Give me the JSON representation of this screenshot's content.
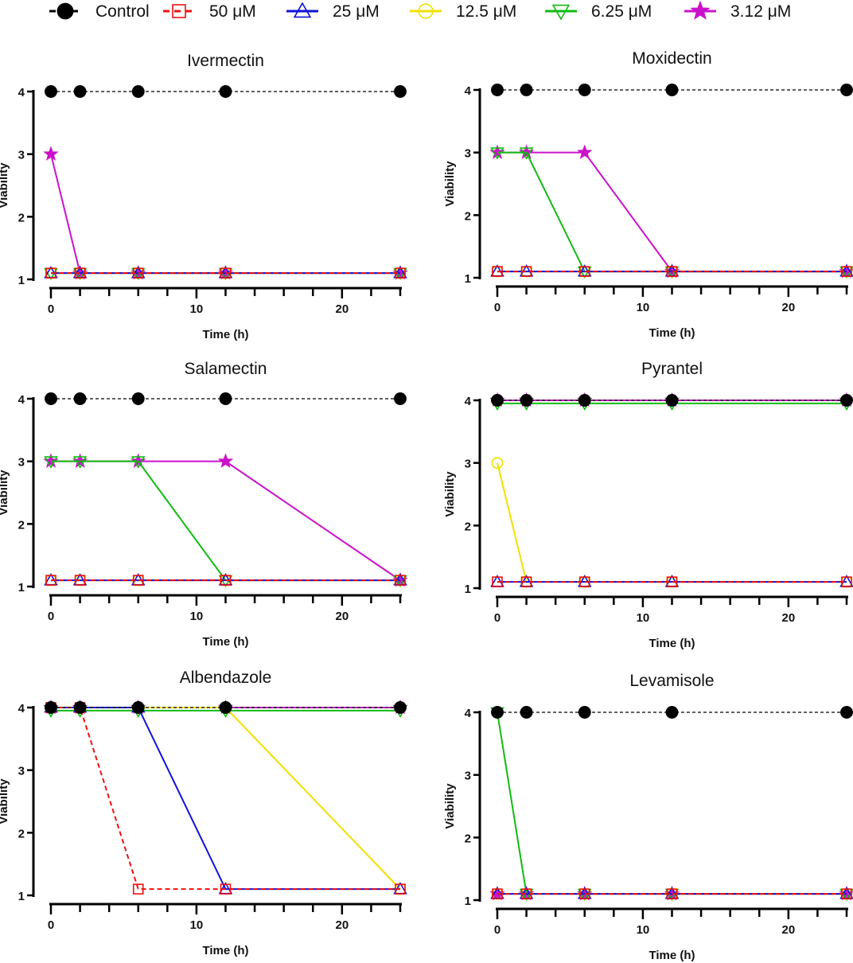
{
  "legend": [
    {
      "name": "Control",
      "color": "#000000",
      "marker": "filled-circle",
      "dashed": true
    },
    {
      "name": "50 μM",
      "color": "#ee1111",
      "marker": "open-square",
      "dashed": true
    },
    {
      "name": "25 μM",
      "color": "#1111dd",
      "marker": "open-triangle-up",
      "dashed": false
    },
    {
      "name": "12.5 μM",
      "color": "#f0e000",
      "marker": "open-circle",
      "dashed": false
    },
    {
      "name": "6.25 μM",
      "color": "#11bb11",
      "marker": "open-triangle-down",
      "dashed": false
    },
    {
      "name": "3.12 μM",
      "color": "#cc11cc",
      "marker": "star",
      "dashed": false
    }
  ],
  "chart_data": [
    {
      "type": "line",
      "title": "Ivermectin",
      "xlabel": "Time (h)",
      "ylabel": "Viability",
      "x": [
        0,
        2,
        6,
        12,
        24
      ],
      "xlim": [
        0,
        24
      ],
      "ylim": [
        1,
        4
      ],
      "xticks": [
        0,
        10,
        20
      ],
      "yticks": [
        1,
        2,
        3,
        4
      ],
      "series": [
        {
          "name": "Control",
          "values": [
            4,
            4,
            4,
            4,
            4
          ]
        },
        {
          "name": "50 μM",
          "values": [
            1.1,
            1.1,
            1.1,
            1.1,
            1.1
          ]
        },
        {
          "name": "25 μM",
          "values": [
            1.1,
            1.1,
            1.1,
            1.1,
            1.1
          ]
        },
        {
          "name": "12.5 μM",
          "values": [
            1.1,
            1.1,
            1.1,
            1.1,
            1.1
          ]
        },
        {
          "name": "6.25 μM",
          "values": [
            1.1,
            1.1,
            1.1,
            1.1,
            1.1
          ]
        },
        {
          "name": "3.12 μM",
          "values": [
            3,
            1.1,
            1.1,
            1.1,
            1.1
          ]
        }
      ]
    },
    {
      "type": "line",
      "title": "Moxidectin",
      "xlabel": "Time (h)",
      "ylabel": "Viability",
      "x": [
        0,
        2,
        6,
        12,
        24
      ],
      "xlim": [
        0,
        24
      ],
      "ylim": [
        1,
        4
      ],
      "xticks": [
        0,
        10,
        20
      ],
      "yticks": [
        1,
        2,
        3,
        4
      ],
      "series": [
        {
          "name": "Control",
          "values": [
            4,
            4,
            4,
            4,
            4
          ]
        },
        {
          "name": "50 μM",
          "values": [
            1.1,
            1.1,
            1.1,
            1.1,
            1.1
          ]
        },
        {
          "name": "25 μM",
          "values": [
            1.1,
            1.1,
            1.1,
            1.1,
            1.1
          ]
        },
        {
          "name": "12.5 μM",
          "values": [
            1.1,
            1.1,
            1.1,
            1.1,
            1.1
          ]
        },
        {
          "name": "6.25 μM",
          "values": [
            3,
            3,
            1.1,
            1.1,
            1.1
          ]
        },
        {
          "name": "3.12 μM",
          "values": [
            3,
            3,
            3,
            1.1,
            1.1
          ]
        }
      ]
    },
    {
      "type": "line",
      "title": "Salamectin",
      "xlabel": "Time (h)",
      "ylabel": "Viability",
      "x": [
        0,
        2,
        6,
        12,
        24
      ],
      "xlim": [
        0,
        24
      ],
      "ylim": [
        1,
        4
      ],
      "xticks": [
        0,
        10,
        20
      ],
      "yticks": [
        1,
        2,
        3,
        4
      ],
      "series": [
        {
          "name": "Control",
          "values": [
            4,
            4,
            4,
            4,
            4
          ]
        },
        {
          "name": "50 μM",
          "values": [
            1.1,
            1.1,
            1.1,
            1.1,
            1.1
          ]
        },
        {
          "name": "25 μM",
          "values": [
            1.1,
            1.1,
            1.1,
            1.1,
            1.1
          ]
        },
        {
          "name": "12.5 μM",
          "values": [
            1.1,
            1.1,
            1.1,
            1.1,
            1.1
          ]
        },
        {
          "name": "6.25 μM",
          "values": [
            3,
            3,
            3,
            1.1,
            1.1
          ]
        },
        {
          "name": "3.12 μM",
          "values": [
            3,
            3,
            3,
            3,
            1.1
          ]
        }
      ]
    },
    {
      "type": "line",
      "title": "Pyrantel",
      "xlabel": "Time (h)",
      "ylabel": "Viability",
      "x": [
        0,
        2,
        6,
        12,
        24
      ],
      "xlim": [
        0,
        24
      ],
      "ylim": [
        1,
        4
      ],
      "xticks": [
        0,
        10,
        20
      ],
      "yticks": [
        1,
        2,
        3,
        4
      ],
      "series": [
        {
          "name": "Control",
          "values": [
            4,
            4,
            4,
            4,
            4
          ]
        },
        {
          "name": "50 μM",
          "values": [
            1.1,
            1.1,
            1.1,
            1.1,
            1.1
          ]
        },
        {
          "name": "25 μM",
          "values": [
            1.1,
            1.1,
            1.1,
            1.1,
            1.1
          ]
        },
        {
          "name": "12.5 μM",
          "values": [
            3,
            1.1,
            1.1,
            1.1,
            1.1
          ]
        },
        {
          "name": "6.25 μM",
          "values": [
            3.95,
            3.95,
            3.95,
            3.95,
            3.95
          ]
        },
        {
          "name": "3.12 μM",
          "values": [
            4,
            4,
            4,
            4,
            4
          ]
        }
      ]
    },
    {
      "type": "line",
      "title": "Albendazole",
      "xlabel": "Time (h)",
      "ylabel": "Viability",
      "x": [
        0,
        2,
        6,
        12,
        24
      ],
      "xlim": [
        0,
        24
      ],
      "ylim": [
        1,
        4
      ],
      "xticks": [
        0,
        10,
        20
      ],
      "yticks": [
        1,
        2,
        3,
        4
      ],
      "series": [
        {
          "name": "Control",
          "values": [
            4,
            4,
            4,
            4,
            4
          ]
        },
        {
          "name": "50 μM",
          "values": [
            4,
            4,
            1.1,
            1.1,
            1.1
          ]
        },
        {
          "name": "25 μM",
          "values": [
            4,
            4,
            4,
            1.1,
            1.1
          ]
        },
        {
          "name": "12.5 μM",
          "values": [
            4,
            4,
            4,
            4,
            1.1
          ]
        },
        {
          "name": "6.25 μM",
          "values": [
            3.95,
            3.95,
            3.95,
            3.95,
            3.95
          ]
        },
        {
          "name": "3.12 μM",
          "values": [
            4,
            4,
            4,
            4,
            4
          ]
        }
      ]
    },
    {
      "type": "line",
      "title": "Levamisole",
      "xlabel": "Time (h)",
      "ylabel": "Viability",
      "x": [
        0,
        2,
        6,
        12,
        24
      ],
      "xlim": [
        0,
        24
      ],
      "ylim": [
        1,
        4
      ],
      "xticks": [
        0,
        10,
        20
      ],
      "yticks": [
        1,
        2,
        3,
        4
      ],
      "series": [
        {
          "name": "Control",
          "values": [
            4,
            4,
            4,
            4,
            4
          ]
        },
        {
          "name": "50 μM",
          "values": [
            1.1,
            1.1,
            1.1,
            1.1,
            1.1
          ]
        },
        {
          "name": "25 μM",
          "values": [
            1.1,
            1.1,
            1.1,
            1.1,
            1.1
          ]
        },
        {
          "name": "12.5 μM",
          "values": [
            1.1,
            1.1,
            1.1,
            1.1,
            1.1
          ]
        },
        {
          "name": "6.25 μM",
          "values": [
            4,
            1.1,
            1.1,
            1.1,
            1.1
          ]
        },
        {
          "name": "3.12 μM",
          "values": [
            1.1,
            1.1,
            1.1,
            1.1,
            1.1
          ]
        }
      ]
    }
  ]
}
